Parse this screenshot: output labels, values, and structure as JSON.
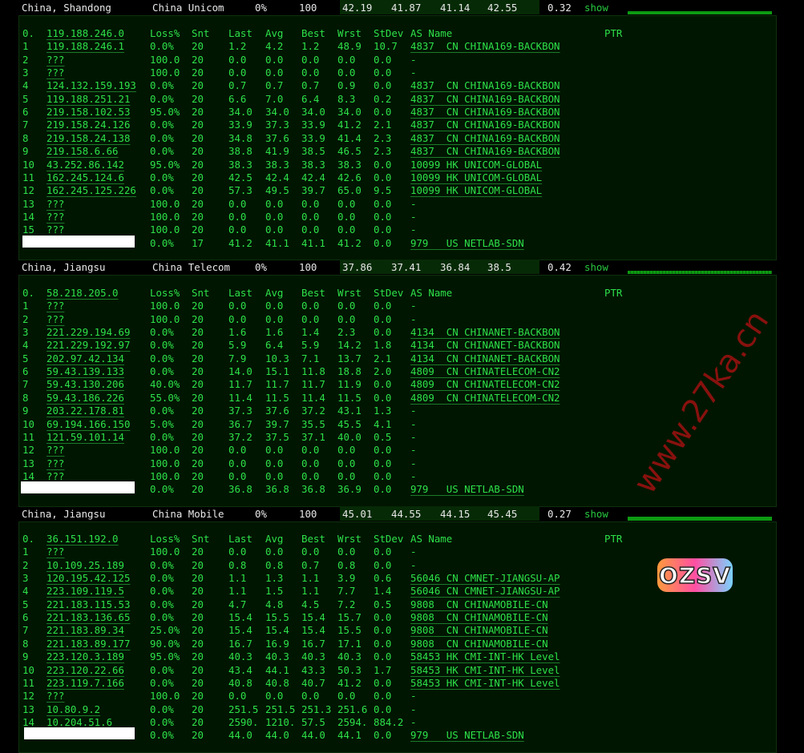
{
  "colors": {
    "text": "#2ee04a",
    "panel_bg": "#001600",
    "header_band": "#062a06",
    "bar": "#0d9a12",
    "watermark": "#a01010"
  },
  "columns": [
    "Loss%",
    "Snt",
    "Last",
    "Avg",
    "Best",
    "Wrst",
    "StDev",
    "AS Name",
    "PTR"
  ],
  "watermark": "www.27ka.cn",
  "logo": "OZSV",
  "sections": [
    {
      "location": "China, Shandong",
      "isp": "China Unicom",
      "loss": "0%",
      "sent": "100",
      "v1": "42.19",
      "v2": "41.87",
      "v3": "41.14",
      "v4": "42.55",
      "stdev": "0.32",
      "show": "show",
      "target": "119.188.246.0",
      "hops": [
        [
          "1",
          "119.188.246.1",
          "0.0%",
          "20",
          "1.2",
          "4.2",
          "1.2",
          "48.9",
          "10.7",
          "4837  CN CHINA169-BACKBON"
        ],
        [
          "2",
          "???",
          "100.0",
          "20",
          "0.0",
          "0.0",
          "0.0",
          "0.0",
          "0.0",
          "-"
        ],
        [
          "3",
          "???",
          "100.0",
          "20",
          "0.0",
          "0.0",
          "0.0",
          "0.0",
          "0.0",
          "-"
        ],
        [
          "4",
          "124.132.159.193",
          "0.0%",
          "20",
          "0.7",
          "0.7",
          "0.7",
          "0.9",
          "0.0",
          "4837  CN CHINA169-BACKBON"
        ],
        [
          "5",
          "119.188.251.21",
          "0.0%",
          "20",
          "6.6",
          "7.0",
          "6.4",
          "8.3",
          "0.2",
          "4837  CN CHINA169-BACKBON"
        ],
        [
          "6",
          "219.158.102.53",
          "95.0%",
          "20",
          "34.0",
          "34.0",
          "34.0",
          "34.0",
          "0.0",
          "4837  CN CHINA169-BACKBON"
        ],
        [
          "7",
          "219.158.24.126",
          "0.0%",
          "20",
          "33.9",
          "37.3",
          "33.9",
          "41.2",
          "2.1",
          "4837  CN CHINA169-BACKBON"
        ],
        [
          "8",
          "219.158.24.138",
          "0.0%",
          "20",
          "34.8",
          "37.6",
          "33.9",
          "41.4",
          "2.3",
          "4837  CN CHINA169-BACKBON"
        ],
        [
          "9",
          "219.158.6.66",
          "0.0%",
          "20",
          "38.8",
          "41.9",
          "38.5",
          "46.5",
          "2.3",
          "4837  CN CHINA169-BACKBON"
        ],
        [
          "10",
          "43.252.86.142",
          "95.0%",
          "20",
          "38.3",
          "38.3",
          "38.3",
          "38.3",
          "0.0",
          "10099 HK UNICOM-GLOBAL"
        ],
        [
          "11",
          "162.245.124.6",
          "0.0%",
          "20",
          "42.5",
          "42.4",
          "42.4",
          "42.6",
          "0.0",
          "10099 HK UNICOM-GLOBAL"
        ],
        [
          "12",
          "162.245.125.226",
          "0.0%",
          "20",
          "57.3",
          "49.5",
          "39.7",
          "65.0",
          "9.5",
          "10099 HK UNICOM-GLOBAL"
        ],
        [
          "13",
          "???",
          "100.0",
          "20",
          "0.0",
          "0.0",
          "0.0",
          "0.0",
          "0.0",
          "-"
        ],
        [
          "14",
          "???",
          "100.0",
          "20",
          "0.0",
          "0.0",
          "0.0",
          "0.0",
          "0.0",
          "-"
        ],
        [
          "15",
          "???",
          "100.0",
          "20",
          "0.0",
          "0.0",
          "0.0",
          "0.0",
          "0.0",
          "-"
        ],
        [
          "",
          "",
          "0.0%",
          "17",
          "41.2",
          "41.1",
          "41.1",
          "41.2",
          "0.0",
          "979   US NETLAB-SDN"
        ]
      ]
    },
    {
      "location": "China, Jiangsu",
      "isp": "China Telecom",
      "loss": "0%",
      "sent": "100",
      "v1": "37.86",
      "v2": "37.41",
      "v3": "36.84",
      "v4": "38.5",
      "stdev": "0.42",
      "show": "show",
      "target": "58.218.205.0",
      "hops": [
        [
          "1",
          "???",
          "100.0",
          "20",
          "0.0",
          "0.0",
          "0.0",
          "0.0",
          "0.0",
          "-"
        ],
        [
          "2",
          "???",
          "100.0",
          "20",
          "0.0",
          "0.0",
          "0.0",
          "0.0",
          "0.0",
          "-"
        ],
        [
          "3",
          "221.229.194.69",
          "0.0%",
          "20",
          "1.6",
          "1.6",
          "1.4",
          "2.3",
          "0.0",
          "4134  CN CHINANET-BACKBON"
        ],
        [
          "4",
          "221.229.192.97",
          "0.0%",
          "20",
          "5.9",
          "6.4",
          "5.9",
          "14.2",
          "1.8",
          "4134  CN CHINANET-BACKBON"
        ],
        [
          "5",
          "202.97.42.134",
          "0.0%",
          "20",
          "7.9",
          "10.3",
          "7.1",
          "13.7",
          "2.1",
          "4134  CN CHINANET-BACKBON"
        ],
        [
          "6",
          "59.43.139.133",
          "0.0%",
          "20",
          "14.0",
          "15.1",
          "11.8",
          "18.8",
          "2.0",
          "4809  CN CHINATELECOM-CN2"
        ],
        [
          "7",
          "59.43.130.206",
          "40.0%",
          "20",
          "11.7",
          "11.7",
          "11.7",
          "11.9",
          "0.0",
          "4809  CN CHINATELECOM-CN2"
        ],
        [
          "8",
          "59.43.186.226",
          "55.0%",
          "20",
          "11.4",
          "11.5",
          "11.4",
          "11.5",
          "0.0",
          "4809  CN CHINATELECOM-CN2"
        ],
        [
          "9",
          "203.22.178.81",
          "0.0%",
          "20",
          "37.3",
          "37.6",
          "37.2",
          "43.1",
          "1.3",
          "-"
        ],
        [
          "10",
          "69.194.166.150",
          "5.0%",
          "20",
          "36.7",
          "39.7",
          "35.5",
          "45.5",
          "4.1",
          "-"
        ],
        [
          "11",
          "121.59.101.14",
          "0.0%",
          "20",
          "37.2",
          "37.5",
          "37.1",
          "40.0",
          "0.5",
          "-"
        ],
        [
          "12",
          "???",
          "100.0",
          "20",
          "0.0",
          "0.0",
          "0.0",
          "0.0",
          "0.0",
          "-"
        ],
        [
          "13",
          "???",
          "100.0",
          "20",
          "0.0",
          "0.0",
          "0.0",
          "0.0",
          "0.0",
          "-"
        ],
        [
          "14",
          "???",
          "100.0",
          "20",
          "0.0",
          "0.0",
          "0.0",
          "0.0",
          "0.0",
          "-"
        ],
        [
          "",
          "",
          "0.0%",
          "20",
          "36.8",
          "36.8",
          "36.8",
          "36.9",
          "0.0",
          "979   US NETLAB-SDN"
        ]
      ]
    },
    {
      "location": "China, Jiangsu",
      "isp": "China Mobile",
      "loss": "0%",
      "sent": "100",
      "v1": "45.01",
      "v2": "44.55",
      "v3": "44.15",
      "v4": "45.45",
      "stdev": "0.27",
      "show": "show",
      "target": "36.151.192.0",
      "hops": [
        [
          "1",
          "???",
          "100.0",
          "20",
          "0.0",
          "0.0",
          "0.0",
          "0.0",
          "0.0",
          "-"
        ],
        [
          "2",
          "10.109.25.189",
          "0.0%",
          "20",
          "0.8",
          "0.8",
          "0.7",
          "0.8",
          "0.0",
          "-"
        ],
        [
          "3",
          "120.195.42.125",
          "0.0%",
          "20",
          "1.1",
          "1.3",
          "1.1",
          "3.9",
          "0.6",
          "56046 CN CMNET-JIANGSU-AP"
        ],
        [
          "4",
          "223.109.119.5",
          "0.0%",
          "20",
          "1.1",
          "1.5",
          "1.1",
          "7.7",
          "1.4",
          "56046 CN CMNET-JIANGSU-AP"
        ],
        [
          "5",
          "221.183.115.53",
          "0.0%",
          "20",
          "4.7",
          "4.8",
          "4.5",
          "7.2",
          "0.5",
          "9808  CN CHINAMOBILE-CN"
        ],
        [
          "6",
          "221.183.136.65",
          "0.0%",
          "20",
          "15.4",
          "15.5",
          "15.4",
          "15.7",
          "0.0",
          "9808  CN CHINAMOBILE-CN"
        ],
        [
          "7",
          "221.183.89.34",
          "25.0%",
          "20",
          "15.4",
          "15.4",
          "15.4",
          "15.5",
          "0.0",
          "9808  CN CHINAMOBILE-CN"
        ],
        [
          "8",
          "221.183.89.177",
          "90.0%",
          "20",
          "16.7",
          "16.9",
          "16.7",
          "17.1",
          "0.0",
          "9808  CN CHINAMOBILE-CN"
        ],
        [
          "9",
          "223.120.3.189",
          "95.0%",
          "20",
          "40.3",
          "40.3",
          "40.3",
          "40.3",
          "0.0",
          "58453 HK CMI-INT-HK Level"
        ],
        [
          "10",
          "223.120.22.66",
          "0.0%",
          "20",
          "43.4",
          "44.1",
          "43.3",
          "50.3",
          "1.7",
          "58453 HK CMI-INT-HK Level"
        ],
        [
          "11",
          "223.119.7.166",
          "0.0%",
          "20",
          "40.8",
          "40.8",
          "40.7",
          "41.2",
          "0.0",
          "58453 HK CMI-INT-HK Level"
        ],
        [
          "12",
          "???",
          "100.0",
          "20",
          "0.0",
          "0.0",
          "0.0",
          "0.0",
          "0.0",
          "-"
        ],
        [
          "13",
          "10.80.9.2",
          "0.0%",
          "20",
          "251.5",
          "251.5",
          "251.3",
          "251.6",
          "0.0",
          "-"
        ],
        [
          "14",
          "10.204.51.6",
          "0.0%",
          "20",
          "2590.",
          "1210.",
          "57.5",
          "2594.",
          "884.2",
          "-"
        ],
        [
          "",
          "",
          "0.0%",
          "20",
          "44.0",
          "44.0",
          "44.0",
          "44.1",
          "0.0",
          "979   US NETLAB-SDN"
        ]
      ]
    }
  ]
}
